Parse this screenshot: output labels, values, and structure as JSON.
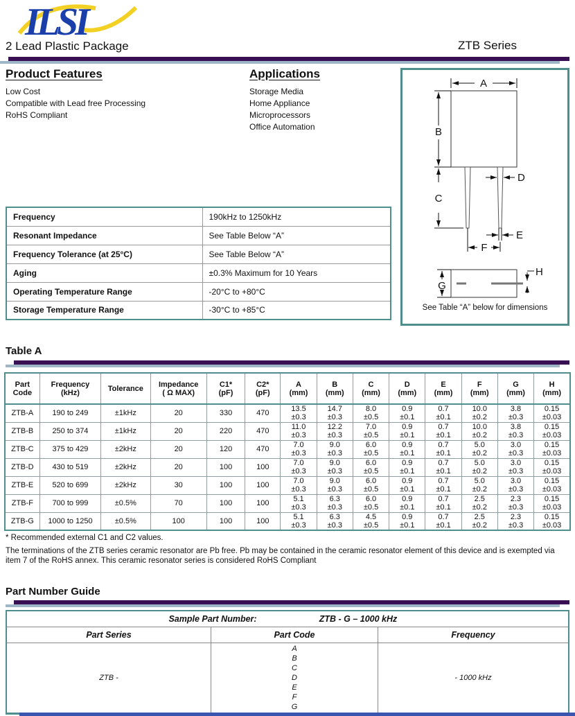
{
  "header": {
    "logo_text": "ILSI",
    "package_title": "2 Lead Plastic Package",
    "series_title": "ZTB Series"
  },
  "features": {
    "title": "Product Features",
    "items": [
      "Low Cost",
      "Compatible with Lead free Processing",
      "RoHS Compliant"
    ]
  },
  "applications": {
    "title": "Applications",
    "items": [
      "Storage Media",
      "Home Appliance",
      "Microprocessors",
      "Office Automation"
    ]
  },
  "diagram": {
    "labels": {
      "a": "A",
      "b": "B",
      "c": "C",
      "d": "D",
      "e": "E",
      "f": "F",
      "g": "G",
      "h": "H"
    },
    "caption": "See Table “A” below for dimensions"
  },
  "specs": {
    "rows": [
      {
        "label": "Frequency",
        "value": "190kHz to 1250kHz"
      },
      {
        "label": "Resonant Impedance",
        "value": "See Table Below “A”"
      },
      {
        "label": "Frequency Tolerance (at 25°C)",
        "value": "See Table Below “A”"
      },
      {
        "label": "Aging",
        "value": "±0.3% Maximum for 10 Years"
      },
      {
        "label": "Operating Temperature Range",
        "value": "-20°C to +80°C"
      },
      {
        "label": "Storage Temperature Range",
        "value": "-30°C to +85°C"
      }
    ]
  },
  "table_a": {
    "title": "Table A",
    "headers": [
      [
        "Part",
        "Code"
      ],
      [
        "Frequency",
        "(kHz)"
      ],
      [
        "Tolerance",
        ""
      ],
      [
        "Impedance",
        "( Ω MAX)"
      ],
      [
        "C1*",
        "(pF)"
      ],
      [
        "C2*",
        "(pF)"
      ],
      [
        "A",
        "(mm)"
      ],
      [
        "B",
        "(mm)"
      ],
      [
        "C",
        "(mm)"
      ],
      [
        "D",
        "(mm)"
      ],
      [
        "E",
        "(mm)"
      ],
      [
        "F",
        "(mm)"
      ],
      [
        "G",
        "(mm)"
      ],
      [
        "H",
        "(mm)"
      ]
    ],
    "rows": [
      [
        "ZTB-A",
        "190 to 249",
        "±1kHz",
        "20",
        "330",
        "470",
        [
          "13.5",
          "±0.3"
        ],
        [
          "14.7",
          "±0.3"
        ],
        [
          "8.0",
          "±0.5"
        ],
        [
          "0.9",
          "±0.1"
        ],
        [
          "0.7",
          "±0.1"
        ],
        [
          "10.0",
          "±0.2"
        ],
        [
          "3.8",
          "±0.3"
        ],
        [
          "0.15",
          "±0.03"
        ]
      ],
      [
        "ZTB-B",
        "250 to 374",
        "±1kHz",
        "20",
        "220",
        "470",
        [
          "11.0",
          "±0.3"
        ],
        [
          "12.2",
          "±0.3"
        ],
        [
          "7.0",
          "±0.5"
        ],
        [
          "0.9",
          "±0.1"
        ],
        [
          "0.7",
          "±0.1"
        ],
        [
          "10.0",
          "±0.2"
        ],
        [
          "3.8",
          "±0.3"
        ],
        [
          "0.15",
          "±0.03"
        ]
      ],
      [
        "ZTB-C",
        "375 to 429",
        "±2kHz",
        "20",
        "120",
        "470",
        [
          "7.0",
          "±0.3"
        ],
        [
          "9.0",
          "±0.3"
        ],
        [
          "6.0",
          "±0.5"
        ],
        [
          "0.9",
          "±0.1"
        ],
        [
          "0.7",
          "±0.1"
        ],
        [
          "5.0",
          "±0.2"
        ],
        [
          "3.0",
          "±0.3"
        ],
        [
          "0.15",
          "±0.03"
        ]
      ],
      [
        "ZTB-D",
        "430 to 519",
        "±2kHz",
        "20",
        "100",
        "100",
        [
          "7.0",
          "±0.3"
        ],
        [
          "9.0",
          "±0.3"
        ],
        [
          "6.0",
          "±0.5"
        ],
        [
          "0.9",
          "±0.1"
        ],
        [
          "0.7",
          "±0.1"
        ],
        [
          "5.0",
          "±0.2"
        ],
        [
          "3.0",
          "±0.3"
        ],
        [
          "0.15",
          "±0.03"
        ]
      ],
      [
        "ZTB-E",
        "520 to 699",
        "±2kHz",
        "30",
        "100",
        "100",
        [
          "7.0",
          "±0.3"
        ],
        [
          "9.0",
          "±0.3"
        ],
        [
          "6.0",
          "±0.5"
        ],
        [
          "0.9",
          "±0.1"
        ],
        [
          "0.7",
          "±0.1"
        ],
        [
          "5.0",
          "±0.2"
        ],
        [
          "3.0",
          "±0.3"
        ],
        [
          "0.15",
          "±0.03"
        ]
      ],
      [
        "ZTB-F",
        "700 to 999",
        "±0.5%",
        "70",
        "100",
        "100",
        [
          "5.1",
          "±0.3"
        ],
        [
          "6.3",
          "±0.3"
        ],
        [
          "6.0",
          "±0.5"
        ],
        [
          "0.9",
          "±0.1"
        ],
        [
          "0.7",
          "±0.1"
        ],
        [
          "2.5",
          "±0.2"
        ],
        [
          "2.3",
          "±0.3"
        ],
        [
          "0.15",
          "±0.03"
        ]
      ],
      [
        "ZTB-G",
        "1000 to 1250",
        "±0.5%",
        "100",
        "100",
        "100",
        [
          "5.1",
          "±0.3"
        ],
        [
          "6.3",
          "±0.3"
        ],
        [
          "4.5",
          "±0.5"
        ],
        [
          "0.9",
          "±0.1"
        ],
        [
          "0.7",
          "±0.1"
        ],
        [
          "2.5",
          "±0.2"
        ],
        [
          "2.3",
          "±0.3"
        ],
        [
          "0.15",
          "±0.03"
        ]
      ]
    ],
    "footnote": "* Recommended external C1 and C2 values.",
    "rohs_note": "The terminations of the ZTB series ceramic resonator are Pb free. Pb may be contained in the ceramic resonator element of this device and is exempted via item 7 of the RoHS annex. This ceramic resonator series is considered RoHS Compliant"
  },
  "part_number_guide": {
    "title": "Part Number Guide",
    "sample_label": "Sample Part Number:",
    "sample_value": "ZTB - G – 1000 kHz",
    "columns": [
      "Part Series",
      "Part Code",
      "Frequency"
    ],
    "series_value": "ZTB -",
    "codes": [
      "A",
      "B",
      "C",
      "D",
      "E",
      "F",
      "G"
    ],
    "frequency_value": "- 1000 kHz"
  },
  "colors": {
    "rule_purple": "#3a1054",
    "rule_shadow": "#9fb6c6",
    "table_border": "#4e8e8e",
    "logo_blue": "#1b3faa",
    "logo_yellow": "#f2d024",
    "footer_bar": "#3a55ad"
  }
}
